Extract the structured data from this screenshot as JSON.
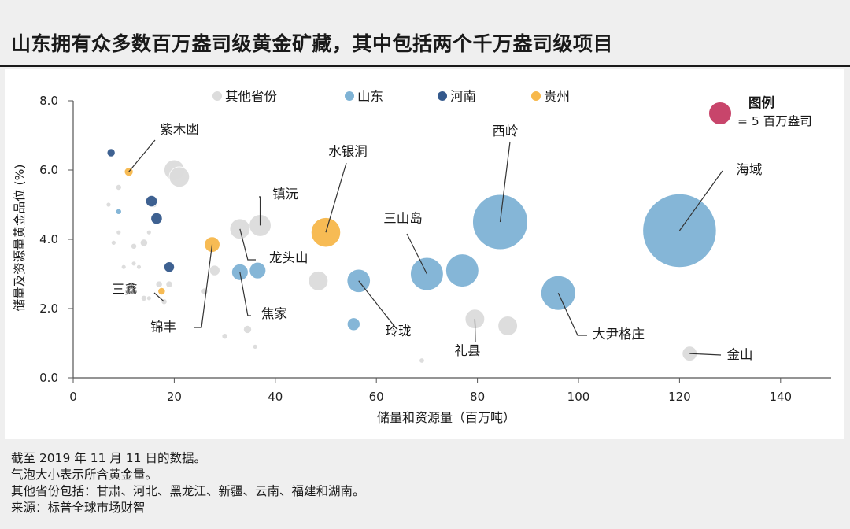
{
  "title": "山东拥有众多数百万盎司级黄金矿藏，其中包括两个千万盎司级项目",
  "notes": [
    "截至 2019 年 11 月 11 日的数据。",
    "气泡大小表示所含黄金量。",
    "其他省份包括：甘肃、河北、黑龙江、新疆、云南、福建和湖南。",
    "来源：标普全球市场财智"
  ],
  "colors": {
    "其他省份": "#dcdcdc",
    "山东": "#7fb3d5",
    "河南": "#34598c",
    "贵州": "#f7b84b",
    "legend_bubble": "#c8456b",
    "axis": "#555555",
    "leader": "#333333"
  },
  "chart_data": {
    "type": "scatter",
    "xlabel": "储量和资源量（百万吨）",
    "ylabel": "储量及资源量黄金品位 (%)",
    "xlim": [
      0,
      150
    ],
    "ylim": [
      0,
      8
    ],
    "x_ticks": [
      "0",
      "20",
      "40",
      "60",
      "80",
      "100",
      "120",
      "140"
    ],
    "y_ticks": [
      "0.0",
      "2.0",
      "4.0",
      "6.0",
      "8.0"
    ],
    "grid": false,
    "legend_position": "top",
    "size_legend": {
      "title": "图例",
      "label": "= 5 百万盎司",
      "value_moz": 5
    },
    "series": [
      {
        "name": "其他省份",
        "points": [
          {
            "x": 20,
            "y": 6.0,
            "moz": 3.8
          },
          {
            "x": 21,
            "y": 5.8,
            "moz": 3.8
          },
          {
            "x": 9,
            "y": 5.5,
            "moz": 0.3
          },
          {
            "x": 7,
            "y": 5.0,
            "moz": 0.1
          },
          {
            "x": 16,
            "y": 5.0,
            "moz": 0.3
          },
          {
            "x": 9,
            "y": 4.2,
            "moz": 0.2
          },
          {
            "x": 15,
            "y": 4.2,
            "moz": 0.15
          },
          {
            "x": 14,
            "y": 3.9,
            "moz": 0.5
          },
          {
            "x": 12,
            "y": 3.8,
            "moz": 0.3
          },
          {
            "x": 8,
            "y": 3.9,
            "moz": 0.1
          },
          {
            "x": 12,
            "y": 3.3,
            "moz": 0.1
          },
          {
            "x": 10,
            "y": 3.2,
            "moz": 0.1
          },
          {
            "x": 13,
            "y": 3.2,
            "moz": 0.15
          },
          {
            "x": 28,
            "y": 3.1,
            "moz": 1.0
          },
          {
            "x": 33,
            "y": 4.3,
            "moz": 3.8
          },
          {
            "x": 37,
            "y": 4.4,
            "moz": 4.4
          },
          {
            "x": 48.5,
            "y": 2.8,
            "moz": 3.5
          },
          {
            "x": 17,
            "y": 2.7,
            "moz": 0.4
          },
          {
            "x": 19,
            "y": 2.7,
            "moz": 0.4
          },
          {
            "x": 14,
            "y": 2.3,
            "moz": 0.3
          },
          {
            "x": 15,
            "y": 2.3,
            "moz": 0.2
          },
          {
            "x": 26,
            "y": 2.5,
            "moz": 0.4
          },
          {
            "x": 18,
            "y": 2.2,
            "moz": 0.3
          },
          {
            "x": 34.5,
            "y": 1.4,
            "moz": 0.6
          },
          {
            "x": 30,
            "y": 1.2,
            "moz": 0.3
          },
          {
            "x": 36,
            "y": 0.9,
            "moz": 0.15
          },
          {
            "x": 69,
            "y": 0.5,
            "moz": 0.25
          },
          {
            "x": 79.5,
            "y": 1.7,
            "moz": 3.5
          },
          {
            "x": 86,
            "y": 1.5,
            "moz": 3.5
          },
          {
            "x": 122,
            "y": 0.7,
            "moz": 2.0
          }
        ]
      },
      {
        "name": "山东",
        "points": [
          {
            "x": 9,
            "y": 4.8,
            "moz": 0.3
          },
          {
            "x": 33,
            "y": 3.05,
            "moz": 2.5
          },
          {
            "x": 36.5,
            "y": 3.1,
            "moz": 2.5
          },
          {
            "x": 56.5,
            "y": 2.8,
            "moz": 5.0
          },
          {
            "x": 55.5,
            "y": 1.55,
            "moz": 1.5
          },
          {
            "x": 70,
            "y": 3.0,
            "moz": 10.0
          },
          {
            "x": 77,
            "y": 3.1,
            "moz": 10.0
          },
          {
            "x": 84.5,
            "y": 4.5,
            "moz": 28.0
          },
          {
            "x": 96,
            "y": 2.45,
            "moz": 11.0
          },
          {
            "x": 120,
            "y": 4.25,
            "moz": 50.0
          }
        ]
      },
      {
        "name": "河南",
        "points": [
          {
            "x": 7.5,
            "y": 6.5,
            "moz": 0.6
          },
          {
            "x": 15.5,
            "y": 5.1,
            "moz": 1.2
          },
          {
            "x": 16.5,
            "y": 4.6,
            "moz": 1.2
          },
          {
            "x": 19,
            "y": 3.2,
            "moz": 1.0
          }
        ]
      },
      {
        "name": "贵州",
        "points": [
          {
            "x": 11,
            "y": 5.95,
            "moz": 0.7
          },
          {
            "x": 27.5,
            "y": 3.85,
            "moz": 2.2
          },
          {
            "x": 50,
            "y": 4.2,
            "moz": 8.0
          },
          {
            "x": 17.5,
            "y": 2.5,
            "moz": 0.5
          }
        ]
      }
    ],
    "annotations": [
      {
        "label": "紫木凼",
        "x": 11,
        "y": 5.95
      },
      {
        "label": "水银洞",
        "x": 50,
        "y": 4.2
      },
      {
        "label": "镇沅",
        "x": 37,
        "y": 4.4
      },
      {
        "label": "龙头山",
        "x": 33,
        "y": 4.3
      },
      {
        "label": "三鑫",
        "x": 18,
        "y": 2.2
      },
      {
        "label": "锦丰",
        "x": 27.5,
        "y": 3.85
      },
      {
        "label": "焦家",
        "x": 33,
        "y": 3.05
      },
      {
        "label": "玲珑",
        "x": 56.5,
        "y": 2.8
      },
      {
        "label": "三山岛",
        "x": 70,
        "y": 3.0
      },
      {
        "label": "西岭",
        "x": 84.5,
        "y": 4.5
      },
      {
        "label": "礼县",
        "x": 79.5,
        "y": 1.7
      },
      {
        "label": "大尹格庄",
        "x": 96,
        "y": 2.45
      },
      {
        "label": "海域",
        "x": 120,
        "y": 4.25
      },
      {
        "label": "金山",
        "x": 122,
        "y": 0.7
      }
    ]
  }
}
